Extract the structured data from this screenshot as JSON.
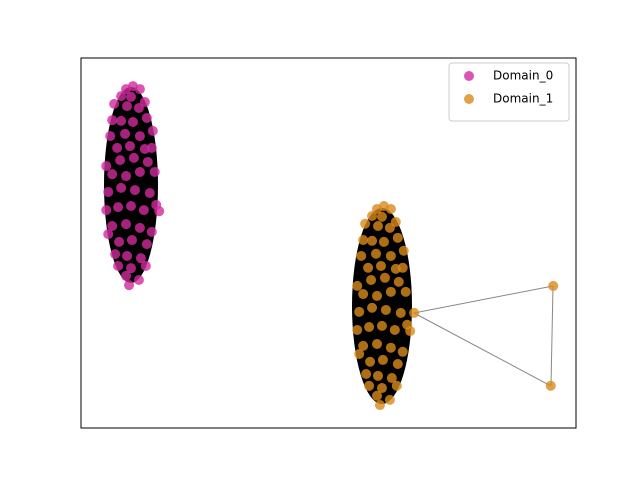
{
  "chart_data": {
    "type": "scatter",
    "xlim": [
      0,
      100
    ],
    "ylim": [
      0,
      100
    ],
    "legend": "upper right",
    "series": [
      {
        "name": "Domain_0",
        "color": "#d02a9c",
        "x": [
          10.5,
          9.1,
          11.9,
          8.1,
          10.1,
          12.9,
          6.7,
          9.3,
          11.7,
          6.3,
          8.1,
          10.5,
          13.3,
          14.5,
          5.9,
          8.9,
          11.9,
          7.3,
          9.9,
          12.9,
          14.3,
          5.1,
          7.9,
          10.7,
          13.5,
          14.9,
          6.3,
          9.1,
          11.9,
          5.5,
          8.1,
          10.9,
          13.9,
          15.2,
          5.1,
          7.5,
          10.1,
          12.7,
          15.8,
          6.3,
          9.1,
          11.9,
          14.3,
          5.5,
          7.7,
          10.3,
          13.3,
          6.9,
          9.3,
          12.1,
          7.5,
          10.1,
          13.1,
          9.1,
          11.7,
          9.7
        ],
        "values": [
          92.4,
          91.6,
          91.6,
          89.7,
          89.5,
          88.1,
          87.6,
          87.0,
          86.5,
          83.2,
          83.0,
          82.7,
          83.8,
          80.3,
          78.9,
          79.5,
          78.9,
          75.7,
          76.2,
          75.4,
          75.7,
          70.8,
          72.4,
          73.0,
          71.9,
          69.2,
          68.6,
          68.1,
          69.2,
          63.8,
          64.9,
          64.3,
          63.5,
          60.3,
          58.9,
          59.7,
          60.0,
          58.9,
          58.6,
          54.6,
          55.1,
          54.1,
          53.0,
          52.4,
          50.3,
          50.8,
          49.7,
          47.0,
          46.5,
          45.9,
          43.8,
          43.2,
          43.8,
          41.1,
          40.0,
          38.6
        ]
      },
      {
        "name": "Domain_1",
        "color": "#d9891c",
        "x": [
          61.2,
          59.8,
          62.6,
          58.8,
          60.8,
          63.6,
          57.4,
          60.0,
          62.4,
          57.0,
          58.8,
          61.2,
          64.0,
          65.2,
          56.6,
          59.6,
          62.6,
          58.0,
          60.6,
          63.6,
          65.0,
          55.8,
          58.6,
          61.4,
          64.2,
          65.6,
          57.0,
          59.8,
          62.6,
          56.2,
          58.8,
          61.6,
          64.6,
          65.9,
          55.8,
          58.2,
          60.8,
          63.4,
          66.5,
          57.0,
          59.8,
          62.6,
          65.0,
          56.2,
          58.4,
          61.0,
          64.0,
          57.6,
          60.0,
          62.8,
          58.2,
          60.8,
          63.8,
          59.8,
          62.4,
          60.4,
          67.3,
          95.4,
          94.9
        ],
        "values": [
          60.0,
          59.2,
          59.2,
          57.3,
          57.1,
          55.7,
          55.2,
          54.6,
          54.1,
          50.8,
          50.6,
          50.3,
          51.4,
          47.9,
          46.5,
          47.1,
          46.5,
          43.3,
          43.8,
          43.0,
          43.3,
          38.4,
          40.0,
          40.6,
          39.5,
          36.8,
          36.2,
          35.7,
          36.8,
          31.4,
          32.5,
          31.9,
          31.1,
          27.9,
          26.5,
          27.3,
          27.6,
          26.5,
          26.2,
          22.2,
          22.7,
          21.7,
          20.6,
          20.0,
          17.9,
          18.4,
          17.3,
          14.6,
          14.1,
          13.5,
          11.4,
          10.8,
          11.4,
          8.7,
          7.6,
          6.2,
          31.1,
          38.4,
          11.4
        ]
      }
    ]
  }
}
